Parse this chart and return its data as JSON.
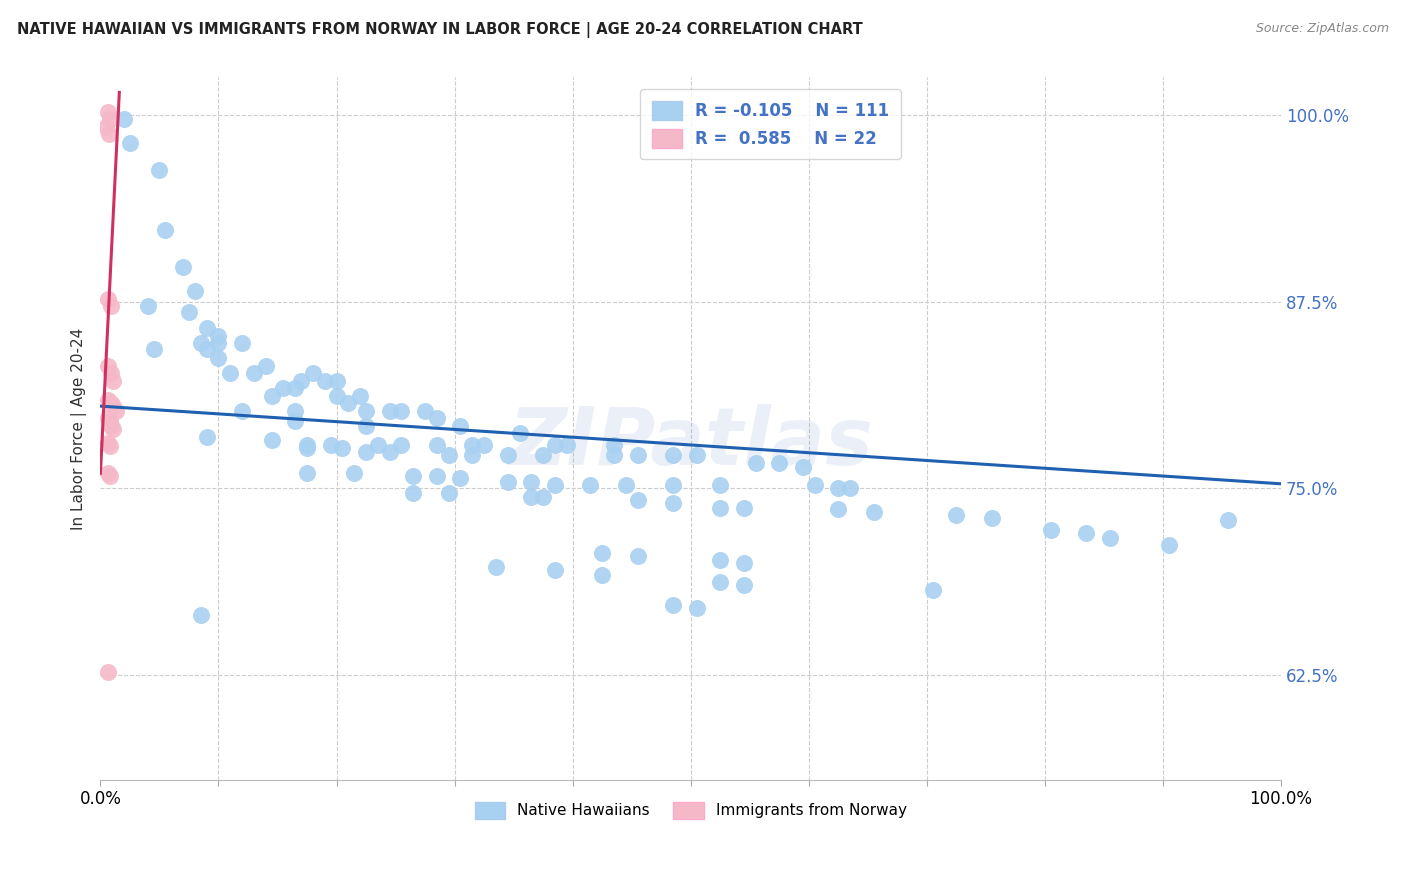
{
  "title": "NATIVE HAWAIIAN VS IMMIGRANTS FROM NORWAY IN LABOR FORCE | AGE 20-24 CORRELATION CHART",
  "source": "Source: ZipAtlas.com",
  "ylabel": "In Labor Force | Age 20-24",
  "xlim": [
    0.0,
    1.0
  ],
  "ylim": [
    0.555,
    1.025
  ],
  "yticks": [
    0.625,
    0.75,
    0.875,
    1.0
  ],
  "ytick_labels": [
    "62.5%",
    "75.0%",
    "87.5%",
    "100.0%"
  ],
  "xticks": [
    0.0,
    0.1,
    0.2,
    0.3,
    0.4,
    0.5,
    0.6,
    0.7,
    0.8,
    0.9,
    1.0
  ],
  "xtick_labels": [
    "0.0%",
    "",
    "",
    "",
    "",
    "",
    "",
    "",
    "",
    "",
    "100.0%"
  ],
  "blue_color": "#A8D0F0",
  "pink_color": "#F5B8C8",
  "trend_blue": "#2060B0",
  "trend_pink": "#D03060",
  "watermark": "ZIPatlas",
  "blue_dots": [
    [
      0.02,
      0.997
    ],
    [
      0.025,
      0.981
    ],
    [
      0.05,
      0.963
    ],
    [
      0.055,
      0.923
    ],
    [
      0.07,
      0.898
    ],
    [
      0.08,
      0.882
    ],
    [
      0.04,
      0.872
    ],
    [
      0.075,
      0.868
    ],
    [
      0.09,
      0.857
    ],
    [
      0.1,
      0.852
    ],
    [
      0.085,
      0.847
    ],
    [
      0.1,
      0.847
    ],
    [
      0.12,
      0.847
    ],
    [
      0.045,
      0.843
    ],
    [
      0.09,
      0.843
    ],
    [
      0.1,
      0.837
    ],
    [
      0.14,
      0.832
    ],
    [
      0.11,
      0.827
    ],
    [
      0.13,
      0.827
    ],
    [
      0.18,
      0.827
    ],
    [
      0.17,
      0.822
    ],
    [
      0.19,
      0.822
    ],
    [
      0.2,
      0.822
    ],
    [
      0.155,
      0.817
    ],
    [
      0.165,
      0.817
    ],
    [
      0.145,
      0.812
    ],
    [
      0.2,
      0.812
    ],
    [
      0.22,
      0.812
    ],
    [
      0.21,
      0.807
    ],
    [
      0.12,
      0.802
    ],
    [
      0.165,
      0.802
    ],
    [
      0.225,
      0.802
    ],
    [
      0.245,
      0.802
    ],
    [
      0.255,
      0.802
    ],
    [
      0.275,
      0.802
    ],
    [
      0.285,
      0.797
    ],
    [
      0.165,
      0.795
    ],
    [
      0.225,
      0.792
    ],
    [
      0.305,
      0.792
    ],
    [
      0.355,
      0.787
    ],
    [
      0.09,
      0.784
    ],
    [
      0.145,
      0.782
    ],
    [
      0.175,
      0.779
    ],
    [
      0.195,
      0.779
    ],
    [
      0.235,
      0.779
    ],
    [
      0.255,
      0.779
    ],
    [
      0.285,
      0.779
    ],
    [
      0.315,
      0.779
    ],
    [
      0.325,
      0.779
    ],
    [
      0.385,
      0.779
    ],
    [
      0.395,
      0.779
    ],
    [
      0.435,
      0.779
    ],
    [
      0.175,
      0.777
    ],
    [
      0.205,
      0.777
    ],
    [
      0.225,
      0.774
    ],
    [
      0.245,
      0.774
    ],
    [
      0.295,
      0.772
    ],
    [
      0.315,
      0.772
    ],
    [
      0.345,
      0.772
    ],
    [
      0.375,
      0.772
    ],
    [
      0.435,
      0.772
    ],
    [
      0.455,
      0.772
    ],
    [
      0.485,
      0.772
    ],
    [
      0.505,
      0.772
    ],
    [
      0.555,
      0.767
    ],
    [
      0.575,
      0.767
    ],
    [
      0.595,
      0.764
    ],
    [
      0.175,
      0.76
    ],
    [
      0.215,
      0.76
    ],
    [
      0.265,
      0.758
    ],
    [
      0.285,
      0.758
    ],
    [
      0.305,
      0.757
    ],
    [
      0.345,
      0.754
    ],
    [
      0.365,
      0.754
    ],
    [
      0.385,
      0.752
    ],
    [
      0.415,
      0.752
    ],
    [
      0.445,
      0.752
    ],
    [
      0.485,
      0.752
    ],
    [
      0.525,
      0.752
    ],
    [
      0.605,
      0.752
    ],
    [
      0.625,
      0.75
    ],
    [
      0.635,
      0.75
    ],
    [
      0.265,
      0.747
    ],
    [
      0.295,
      0.747
    ],
    [
      0.365,
      0.744
    ],
    [
      0.375,
      0.744
    ],
    [
      0.455,
      0.742
    ],
    [
      0.485,
      0.74
    ],
    [
      0.525,
      0.737
    ],
    [
      0.545,
      0.737
    ],
    [
      0.625,
      0.736
    ],
    [
      0.655,
      0.734
    ],
    [
      0.725,
      0.732
    ],
    [
      0.755,
      0.73
    ],
    [
      0.805,
      0.722
    ],
    [
      0.835,
      0.72
    ],
    [
      0.855,
      0.717
    ],
    [
      0.905,
      0.712
    ],
    [
      0.425,
      0.707
    ],
    [
      0.455,
      0.705
    ],
    [
      0.525,
      0.702
    ],
    [
      0.545,
      0.7
    ],
    [
      0.335,
      0.697
    ],
    [
      0.385,
      0.695
    ],
    [
      0.425,
      0.692
    ],
    [
      0.525,
      0.687
    ],
    [
      0.545,
      0.685
    ],
    [
      0.705,
      0.682
    ],
    [
      0.485,
      0.672
    ],
    [
      0.505,
      0.67
    ],
    [
      0.085,
      0.665
    ],
    [
      0.955,
      0.729
    ]
  ],
  "pink_dots": [
    [
      0.006,
      1.002
    ],
    [
      0.008,
      0.997
    ],
    [
      0.005,
      0.992
    ],
    [
      0.007,
      0.987
    ],
    [
      0.006,
      0.877
    ],
    [
      0.009,
      0.872
    ],
    [
      0.006,
      0.832
    ],
    [
      0.009,
      0.827
    ],
    [
      0.011,
      0.822
    ],
    [
      0.006,
      0.809
    ],
    [
      0.009,
      0.807
    ],
    [
      0.011,
      0.805
    ],
    [
      0.013,
      0.802
    ],
    [
      0.006,
      0.797
    ],
    [
      0.008,
      0.795
    ],
    [
      0.009,
      0.792
    ],
    [
      0.011,
      0.79
    ],
    [
      0.006,
      0.78
    ],
    [
      0.008,
      0.778
    ],
    [
      0.006,
      0.76
    ],
    [
      0.008,
      0.758
    ],
    [
      0.006,
      0.627
    ]
  ],
  "blue_trend_x": [
    0.0,
    1.0
  ],
  "blue_trend_y": [
    0.805,
    0.753
  ],
  "pink_trend_x": [
    0.0,
    0.016
  ],
  "pink_trend_y": [
    0.76,
    1.015
  ]
}
